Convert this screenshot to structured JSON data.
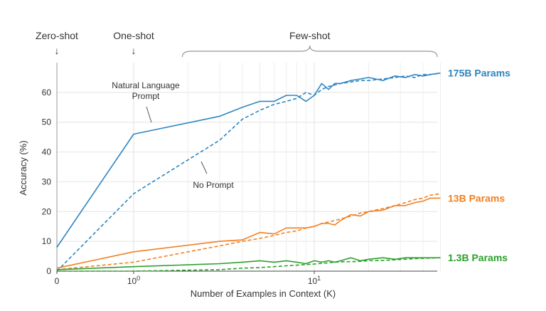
{
  "chart_data": {
    "type": "line",
    "xlabel": "Number of Examples in Context  (K)",
    "ylabel": "Accuracy (%)",
    "xscale": "symlog",
    "xlim": [
      0,
      50
    ],
    "ylim": [
      0,
      70
    ],
    "y_ticks": [
      0,
      10,
      20,
      30,
      40,
      50,
      60
    ],
    "x_ticks": [
      {
        "value": 0,
        "label": "0",
        "sup": ""
      },
      {
        "value": 1,
        "label": "10",
        "sup": "0"
      },
      {
        "value": 10,
        "label": "10",
        "sup": "1"
      }
    ],
    "grid": true,
    "phases": [
      {
        "label": "Zero-shot",
        "arrow": "↓",
        "type": "arrow",
        "x": 0
      },
      {
        "label": "One-shot",
        "arrow": "↓",
        "type": "arrow",
        "x": 1
      },
      {
        "label": "Few-shot",
        "type": "brace",
        "x_range": [
          2,
          50
        ]
      }
    ],
    "annotations": [
      {
        "lines": [
          "Natural Language",
          "Prompt"
        ],
        "points_to": {
          "x": 1.7,
          "y": 47
        }
      },
      {
        "lines": [
          "No Prompt"
        ],
        "points_to": {
          "x": 3.1,
          "y": 36
        }
      }
    ],
    "series": [
      {
        "name": "175B Params",
        "color": "#2e86c1",
        "style": "solid",
        "prompt": "Natural Language Prompt",
        "x": [
          0,
          1,
          3,
          4,
          5,
          6,
          7,
          8,
          9,
          10,
          11,
          12,
          13,
          14,
          16,
          18,
          20,
          24,
          28,
          32,
          36,
          40,
          44,
          50
        ],
        "y": [
          8,
          46,
          52,
          55,
          57,
          57,
          59,
          59,
          57,
          59,
          63,
          61,
          63,
          63,
          64,
          64.5,
          65,
          64,
          65.5,
          65,
          66,
          65.5,
          66,
          66.5
        ]
      },
      {
        "name": "175B Params",
        "color": "#2e86c1",
        "style": "dashed",
        "prompt": "No Prompt",
        "x": [
          0,
          1,
          3,
          4,
          5,
          6,
          7,
          8,
          9,
          10,
          11,
          12,
          13,
          14,
          16,
          18,
          20,
          24,
          28,
          32,
          36,
          40,
          44,
          50
        ],
        "y": [
          0,
          26,
          44,
          51,
          54,
          56,
          57,
          58,
          60,
          59,
          61,
          62,
          62.5,
          63,
          63.5,
          64,
          64,
          64.5,
          65,
          65.5,
          65,
          66,
          66,
          66.5
        ]
      },
      {
        "name": "13B Params",
        "color": "#f28022",
        "style": "solid",
        "prompt": "Natural Language Prompt",
        "x": [
          0,
          1,
          3,
          4,
          5,
          6,
          7,
          8,
          9,
          10,
          11,
          12,
          13,
          14,
          16,
          18,
          20,
          24,
          28,
          32,
          36,
          40,
          44,
          50
        ],
        "y": [
          1,
          6.5,
          10,
          10.5,
          13,
          12.5,
          14.5,
          14.5,
          14.5,
          15,
          16,
          16,
          15.5,
          17,
          19,
          18.5,
          20,
          20.5,
          22,
          22,
          23,
          23.5,
          24.5,
          24.5
        ]
      },
      {
        "name": "13B Params",
        "color": "#f28022",
        "style": "dashed",
        "prompt": "No Prompt",
        "x": [
          0,
          1,
          3,
          4,
          5,
          6,
          7,
          8,
          9,
          10,
          11,
          12,
          13,
          14,
          16,
          18,
          20,
          24,
          28,
          32,
          36,
          40,
          44,
          50
        ],
        "y": [
          0.5,
          3,
          8.5,
          10,
          11,
          12,
          13,
          13.5,
          14.5,
          15,
          16,
          16.5,
          17,
          17.5,
          18.5,
          19.5,
          20,
          21,
          22,
          23,
          24,
          24.5,
          25.5,
          26
        ]
      },
      {
        "name": "1.3B Params",
        "color": "#2ca02c",
        "style": "solid",
        "prompt": "Natural Language Prompt",
        "x": [
          0,
          1,
          3,
          4,
          5,
          6,
          7,
          8,
          9,
          10,
          11,
          12,
          13,
          14,
          16,
          18,
          20,
          24,
          28,
          32,
          36,
          40,
          44,
          50
        ],
        "y": [
          0.5,
          1.5,
          2.5,
          3,
          3.5,
          3,
          3.5,
          3,
          2.5,
          3.5,
          3,
          3.5,
          3,
          3.5,
          4.5,
          3.5,
          4,
          4.5,
          4,
          4.5,
          4.5,
          4.5,
          4.5,
          4.5
        ]
      },
      {
        "name": "1.3B Params",
        "color": "#2ca02c",
        "style": "dashed",
        "prompt": "No Prompt",
        "x": [
          0,
          1,
          3,
          4,
          5,
          6,
          7,
          8,
          9,
          10,
          11,
          12,
          13,
          14,
          16,
          18,
          20,
          24,
          28,
          32,
          36,
          40,
          44,
          50
        ],
        "y": [
          0,
          0,
          0.5,
          1,
          1.2,
          1.5,
          1.8,
          2,
          2.2,
          2.4,
          2.6,
          2.8,
          3,
          3.1,
          3.2,
          3.3,
          3.5,
          3.6,
          3.8,
          4,
          4.2,
          4.3,
          4.4,
          4.5
        ]
      }
    ],
    "series_labels": [
      {
        "text": "175B Params",
        "color": "#2e86c1",
        "y": 66.5
      },
      {
        "text": "13B Params",
        "color": "#f28022",
        "y": 24.5
      },
      {
        "text": "1.3B Params",
        "color": "#2ca02c",
        "y": 4.5
      }
    ]
  }
}
